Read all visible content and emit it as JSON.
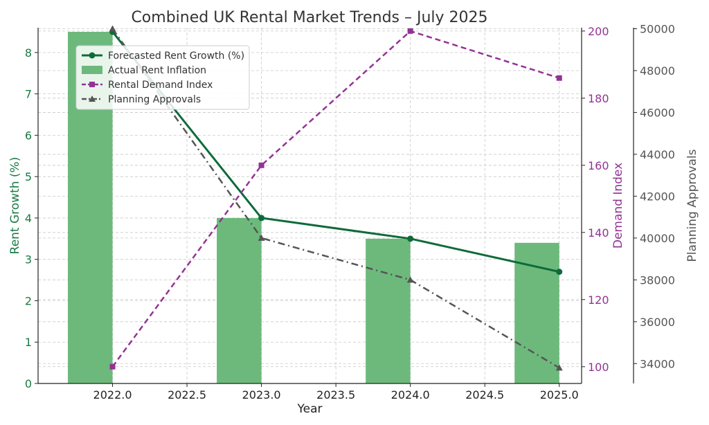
{
  "chart_data": {
    "type": "bar",
    "title": "Combined UK Rental Market Trends – July 2025",
    "xlabel": "Year",
    "x": [
      2022.0,
      2023.0,
      2024.0,
      2025.0
    ],
    "x_ticks": [
      2022.0,
      2022.5,
      2023.0,
      2023.5,
      2024.0,
      2024.5,
      2025.0
    ],
    "x_tick_labels": [
      "2022.0",
      "2022.5",
      "2023.0",
      "2023.5",
      "2024.0",
      "2024.5",
      "2025.0"
    ],
    "xlim": [
      2021.5,
      2025.15
    ],
    "grid": true,
    "legend_position": "top-left",
    "axes": {
      "left": {
        "label": "Rent Growth (%)",
        "color": "#1a7a45",
        "ylim": [
          0,
          8.6
        ],
        "ticks": [
          0,
          1,
          2,
          3,
          4,
          5,
          6,
          7,
          8
        ],
        "tick_labels": [
          "0",
          "1",
          "2",
          "3",
          "4",
          "5",
          "6",
          "7",
          "8"
        ]
      },
      "right1": {
        "label": "Demand Index",
        "color": "#933394",
        "ylim": [
          95,
          201
        ],
        "ticks": [
          100,
          120,
          140,
          160,
          180,
          200
        ],
        "tick_labels": [
          "100",
          "120",
          "140",
          "160",
          "180",
          "200"
        ]
      },
      "right2": {
        "label": "Planning Approvals",
        "color": "#555555",
        "ylim": [
          33050,
          50050
        ],
        "ticks": [
          34000,
          36000,
          38000,
          40000,
          42000,
          44000,
          46000,
          48000,
          50000
        ],
        "tick_labels": [
          "34000",
          "36000",
          "38000",
          "40000",
          "42000",
          "44000",
          "46000",
          "48000",
          "50000"
        ]
      }
    },
    "series": [
      {
        "name": "Forecasted Rent Growth (%)",
        "kind": "line",
        "axis": "left",
        "color": "#0d6b3a",
        "marker": "circle",
        "values": [
          8.5,
          4.0,
          3.5,
          2.7
        ]
      },
      {
        "name": "Actual Rent Inflation",
        "kind": "bar",
        "axis": "left",
        "color": "#6db97c",
        "values": [
          8.5,
          4.0,
          3.5,
          3.4
        ]
      },
      {
        "name": "Rental Demand Index",
        "kind": "line",
        "style": "dashed",
        "axis": "right1",
        "color": "#933394",
        "marker": "square",
        "values": [
          100,
          160,
          200,
          186
        ]
      },
      {
        "name": "Planning Approvals",
        "kind": "line",
        "style": "dashdot",
        "axis": "right2",
        "color": "#555555",
        "marker": "triangle",
        "values": [
          50000,
          40000,
          38000,
          33800
        ]
      }
    ]
  }
}
